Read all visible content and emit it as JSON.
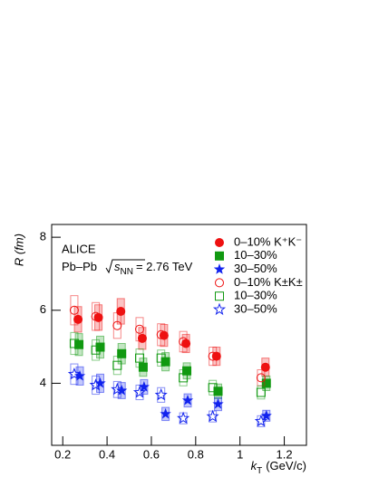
{
  "chart_data": {
    "type": "scatter",
    "y_label": "R (fm)",
    "x_label": {
      "symbol": "k",
      "subscript": "T",
      "unit": "(GeV/c)"
    },
    "annotations": {
      "experiment": "ALICE",
      "system": "Pb–Pb",
      "energy_symbol": "s",
      "energy_subscript": "NN",
      "energy_value": "= 2.76 TeV"
    },
    "xlim": [
      0.15,
      1.3
    ],
    "xticks": [
      0.2,
      0.4,
      0.6,
      0.8,
      1,
      1.2
    ],
    "ylim": [
      2.3,
      8.35
    ],
    "yticks": [
      4,
      6,
      8
    ],
    "series": [
      {
        "name": "0–10% K⁺K⁻",
        "color": "#ee1111",
        "marker": "circle",
        "filled": true,
        "x": [
          0.269,
          0.361,
          0.462,
          0.559,
          0.657,
          0.756,
          0.894,
          1.115
        ],
        "values": [
          5.75,
          5.8,
          5.97,
          5.23,
          5.31,
          5.09,
          4.74,
          4.44
        ],
        "errors": [
          0.35,
          0.35,
          0.35,
          0.3,
          0.3,
          0.25,
          0.25,
          0.25
        ]
      },
      {
        "name": "10–30%",
        "color": "#119911",
        "marker": "square",
        "filled": true,
        "x": [
          0.273,
          0.369,
          0.466,
          0.563,
          0.664,
          0.76,
          0.901,
          1.119
        ],
        "values": [
          5.06,
          4.99,
          4.81,
          4.44,
          4.59,
          4.34,
          3.78,
          4.0
        ],
        "errors": [
          0.3,
          0.3,
          0.28,
          0.25,
          0.25,
          0.22,
          0.2,
          0.2
        ]
      },
      {
        "name": "30–50%",
        "color": "#1122ee",
        "marker": "star",
        "filled": true,
        "x": [
          0.277,
          0.369,
          0.466,
          0.567,
          0.664,
          0.764,
          0.901,
          1.119
        ],
        "values": [
          4.2,
          4.0,
          3.8,
          3.9,
          3.16,
          3.53,
          3.43,
          3.11
        ],
        "errors": [
          0.25,
          0.25,
          0.22,
          0.2,
          0.18,
          0.18,
          0.18,
          0.15
        ]
      },
      {
        "name": "0–10% K±K±",
        "color": "#ee1111",
        "marker": "circle",
        "filled": false,
        "x": [
          0.252,
          0.349,
          0.446,
          0.547,
          0.644,
          0.744,
          0.877,
          1.095
        ],
        "values": [
          6.0,
          5.83,
          5.58,
          5.48,
          5.33,
          5.14,
          4.74,
          4.15
        ],
        "errors": [
          0.4,
          0.38,
          0.35,
          0.32,
          0.3,
          0.28,
          0.25,
          0.22
        ]
      },
      {
        "name": "10–30%",
        "color": "#119911",
        "marker": "square",
        "filled": false,
        "x": [
          0.252,
          0.349,
          0.446,
          0.547,
          0.644,
          0.744,
          0.877,
          1.095
        ],
        "values": [
          5.09,
          4.91,
          4.49,
          4.69,
          4.69,
          4.15,
          3.88,
          3.75
        ],
        "errors": [
          0.3,
          0.28,
          0.25,
          0.25,
          0.22,
          0.22,
          0.2,
          0.18
        ]
      },
      {
        "name": "30–50%",
        "color": "#1122ee",
        "marker": "star",
        "filled": false,
        "x": [
          0.252,
          0.349,
          0.446,
          0.547,
          0.644,
          0.744,
          0.877,
          1.095
        ],
        "values": [
          4.25,
          3.95,
          3.83,
          3.75,
          3.68,
          3.04,
          3.09,
          2.96
        ],
        "errors": [
          0.28,
          0.25,
          0.22,
          0.2,
          0.2,
          0.15,
          0.15,
          0.15
        ]
      }
    ]
  }
}
